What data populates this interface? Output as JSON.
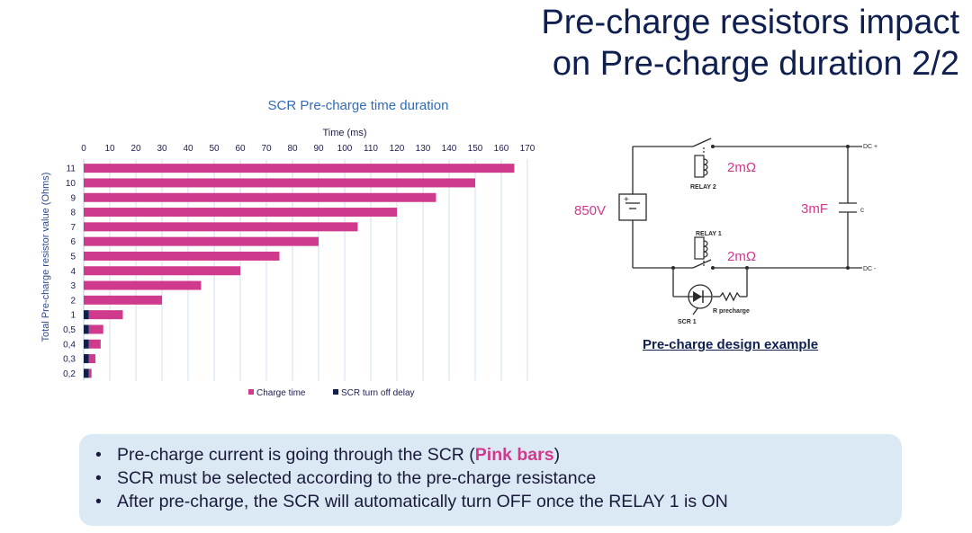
{
  "slide": {
    "title_line1": "Pre-charge resistors impact",
    "title_line2": "on Pre-charge duration 2/2"
  },
  "chart_data": {
    "type": "bar",
    "orientation": "horizontal",
    "stacked": true,
    "title": "SCR Pre-charge time duration",
    "xlabel": "Time (ms)",
    "ylabel": "Total Pre-charge resistor value (Ohms)",
    "xlim": [
      0,
      170
    ],
    "xticks": [
      "0",
      "10",
      "20",
      "30",
      "40",
      "50",
      "60",
      "70",
      "80",
      "90",
      "100",
      "110",
      "120",
      "130",
      "140",
      "150",
      "160",
      "170"
    ],
    "categories": [
      "11",
      "10",
      "9",
      "8",
      "7",
      "6",
      "5",
      "4",
      "3",
      "2",
      "1",
      "0,5",
      "0,4",
      "0,3",
      "0,2"
    ],
    "series": [
      {
        "name": "SCR turn off delay",
        "color": "#0f1f4f",
        "values": [
          0,
          0,
          0,
          0,
          0,
          0,
          0,
          0,
          0,
          0,
          2,
          2,
          2,
          2,
          2
        ]
      },
      {
        "name": "Charge time",
        "color": "#d03a8c",
        "values": [
          165,
          150,
          135,
          120,
          105,
          90,
          75,
          60,
          45,
          30,
          13,
          5.5,
          4.5,
          2.5,
          1
        ]
      }
    ],
    "legend": [
      "Charge time",
      "SCR turn off delay"
    ],
    "legend_position": "bottom",
    "grid": true
  },
  "circuit": {
    "voltage": "850V",
    "capacitance": "3mF",
    "cap_label": "c",
    "relay2_resistance": "2mΩ",
    "relay1_resistance": "2mΩ",
    "relay2_label": "RELAY 2",
    "relay1_label": "RELAY 1",
    "dc_plus": "DC +",
    "dc_minus": "DC -",
    "r_precharge": "R precharge",
    "scr_label": "SCR 1",
    "caption": "Pre-charge design example"
  },
  "notes": {
    "bullet1_before": "Pre-charge current is going through the SCR (",
    "bullet1_highlight": "Pink bars",
    "bullet1_after": ")",
    "bullet2": "SCR must be selected according to the pre-charge resistance",
    "bullet3": "After pre-charge, the SCR will automatically turn OFF once the RELAY 1 is ON"
  }
}
